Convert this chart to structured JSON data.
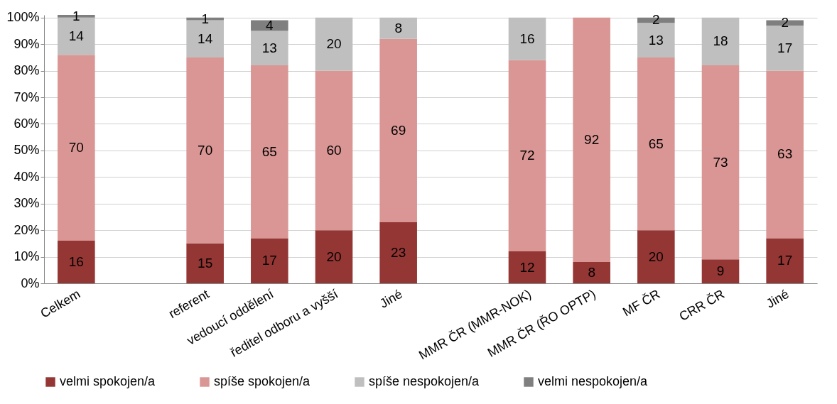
{
  "chart_data": {
    "type": "bar",
    "stacked": true,
    "data_labels": true,
    "grid": "y",
    "legend": "bottom",
    "categories": [
      "Celkem",
      null,
      "referent",
      "vedoucí oddělení",
      "ředitel odboru a vyšší",
      "Jiné",
      null,
      "MMR ČR (MMR-NOK)",
      "MMR ČR (ŘO OPTP)",
      "MF ČR",
      "CRR ČR",
      "Jiné"
    ],
    "ylim": [
      0,
      101
    ],
    "yticks": [
      {
        "value": 0,
        "label": "0%"
      },
      {
        "value": 10,
        "label": "10%"
      },
      {
        "value": 20,
        "label": "20%"
      },
      {
        "value": 30,
        "label": "30%"
      },
      {
        "value": 40,
        "label": "40%"
      },
      {
        "value": 50,
        "label": "50%"
      },
      {
        "value": 60,
        "label": "60%"
      },
      {
        "value": 70,
        "label": "70%"
      },
      {
        "value": 80,
        "label": "80%"
      },
      {
        "value": 90,
        "label": "90%"
      },
      {
        "value": 100,
        "label": "100%"
      }
    ],
    "series": [
      {
        "name": "velmi spokojen/a",
        "color": "#943634",
        "values": [
          16,
          null,
          15,
          17,
          20,
          23,
          null,
          12,
          8,
          20,
          9,
          17
        ]
      },
      {
        "name": "spíše spokojen/a",
        "color": "#d99694",
        "values": [
          70,
          null,
          70,
          65,
          60,
          69,
          null,
          72,
          92,
          65,
          73,
          63
        ]
      },
      {
        "name": "spíše nespokojen/a",
        "color": "#bfbfbf",
        "values": [
          14,
          null,
          14,
          13,
          20,
          8,
          null,
          16,
          null,
          13,
          18,
          17
        ]
      },
      {
        "name": "velmi nespokojen/a",
        "color": "#7f7f7f",
        "values": [
          1,
          null,
          1,
          4,
          null,
          null,
          null,
          null,
          null,
          2,
          null,
          2
        ]
      }
    ]
  }
}
